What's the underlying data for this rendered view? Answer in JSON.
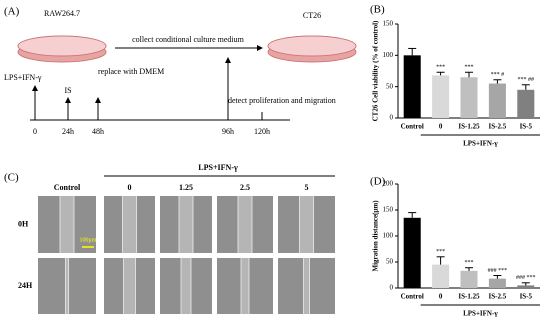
{
  "panel_a": {
    "label": "(A)",
    "dish_left": "RAW264.7",
    "dish_right": "CT26",
    "transfer": "collect conditional culture medium",
    "stimulus": "LPS+IFN-γ",
    "treatment": "IS",
    "replace": "replace with DMEM",
    "detect": "detect proliferation and migration",
    "times": [
      "0",
      "24h",
      "48h",
      "96h",
      "120h"
    ]
  },
  "panel_c": {
    "label": "(C)",
    "group_label": "LPS+IFN-γ",
    "columns": [
      "Control",
      "0",
      "1.25",
      "2.5",
      "5"
    ],
    "rows": [
      "0H",
      "24H"
    ],
    "scale_bar": "100μm"
  },
  "chart_data": [
    {
      "type": "bar",
      "panel": "(B)",
      "ylabel": "CT26 Cell viability (% of control)",
      "group_label": "LPS+IFN-γ",
      "categories": [
        "Control",
        "0",
        "IS-1.25",
        "IS-2.5",
        "IS-5"
      ],
      "values": [
        100,
        68,
        65,
        55,
        45
      ],
      "errors": [
        11,
        5,
        8,
        6,
        8
      ],
      "annotations": [
        null,
        "***",
        "***",
        "*** #",
        "*** ##"
      ],
      "colors": [
        "#000000",
        "#d9d9d9",
        "#bfbfbf",
        "#a6a6a6",
        "#808080"
      ],
      "ylim": [
        0,
        150
      ],
      "yticks": [
        0,
        50,
        100,
        150
      ]
    },
    {
      "type": "bar",
      "panel": "(D)",
      "ylabel": "Migration distance(μm)",
      "group_label": "LPS+IFN-γ",
      "categories": [
        "Control",
        "0",
        "IS-1.25",
        "IS-2.5",
        "IS-5"
      ],
      "values": [
        135,
        45,
        33,
        18,
        5
      ],
      "errors": [
        10,
        15,
        6,
        6,
        5
      ],
      "annotations": [
        null,
        "***",
        "***",
        "### ***",
        "### ***"
      ],
      "colors": [
        "#000000",
        "#d9d9d9",
        "#bfbfbf",
        "#a6a6a6",
        "#808080"
      ],
      "ylim": [
        0,
        200
      ],
      "yticks": [
        0,
        50,
        100,
        150,
        200
      ]
    }
  ]
}
